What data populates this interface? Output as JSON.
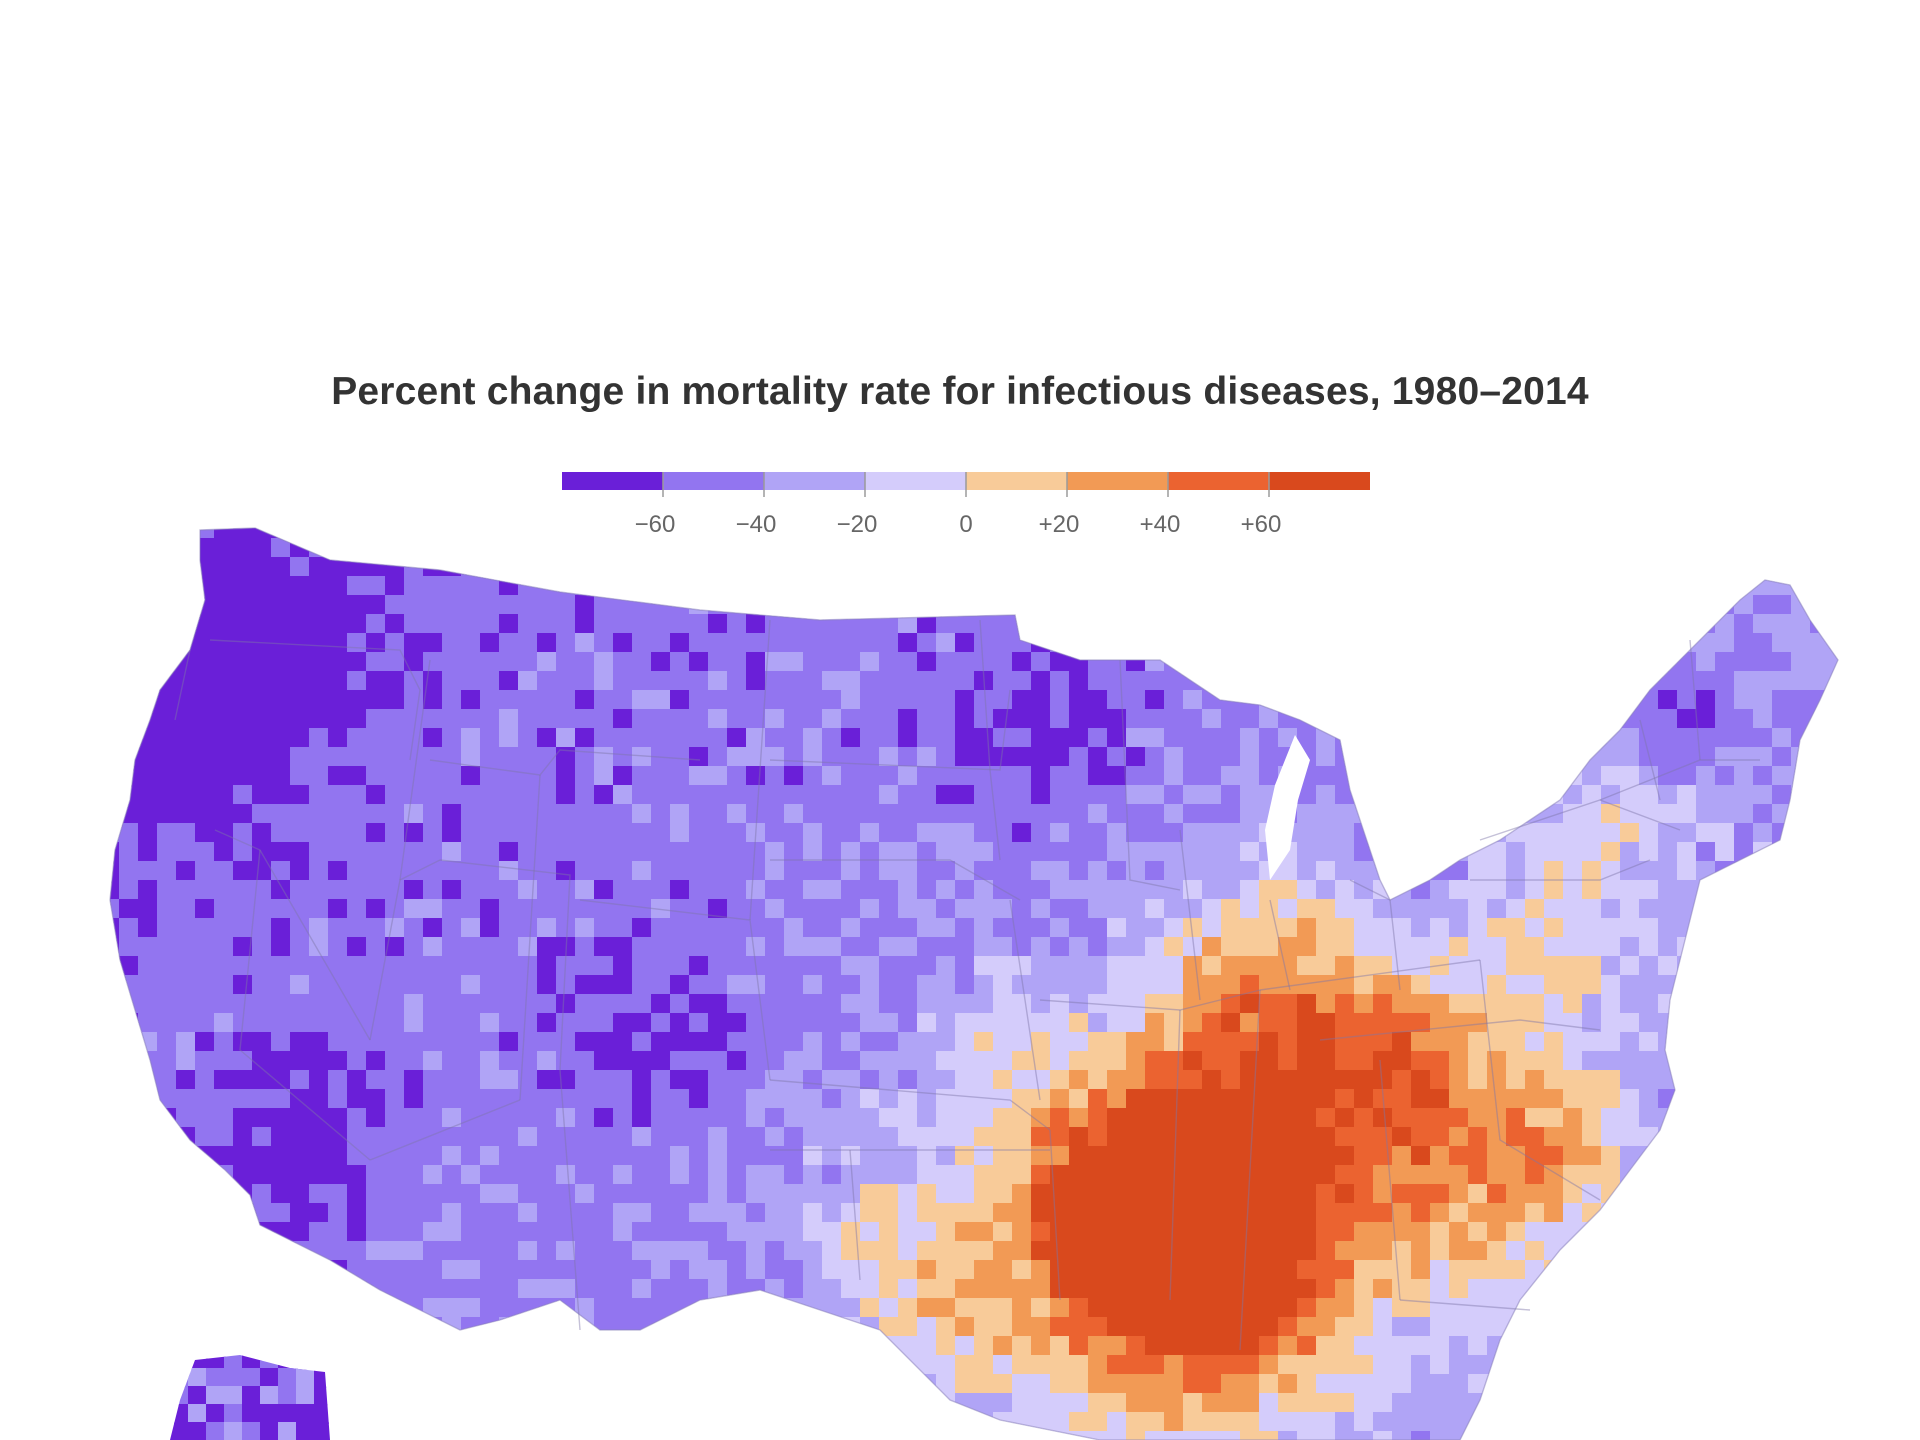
{
  "title": "Percent change in mortality rate for infectious diseases, 1980–2014",
  "legend": {
    "colors": [
      "#6a1fd8",
      "#9275f0",
      "#b0a4f6",
      "#d4ccfb",
      "#f8cb99",
      "#f29a55",
      "#eb6330",
      "#d9491d"
    ],
    "tick_labels": [
      "−60",
      "−40",
      "−20",
      "0",
      "+20",
      "+40",
      "+60"
    ]
  }
}
